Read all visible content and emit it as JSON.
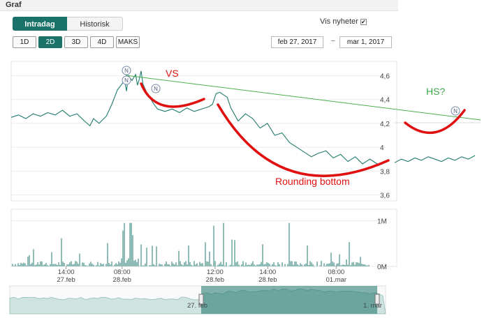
{
  "header": {
    "title": "Graf"
  },
  "tabs": [
    {
      "label": "Intradag",
      "active": true
    },
    {
      "label": "Historisk",
      "active": false
    }
  ],
  "news_toggle": {
    "label": "Vis nyheter",
    "checked": true,
    "mark": "✔"
  },
  "ranges": [
    {
      "label": "1D",
      "active": false
    },
    {
      "label": "2D",
      "active": true
    },
    {
      "label": "3D",
      "active": false
    },
    {
      "label": "4D",
      "active": false
    },
    {
      "label": "MAKS",
      "active": false
    }
  ],
  "date_range": {
    "from": "feb 27, 2017",
    "separator": "–",
    "to": "mar 1, 2017"
  },
  "colors": {
    "accent": "#1a7268",
    "price": "#1f7a6c",
    "annotation": "#e01010",
    "trend": "#4caf4c"
  },
  "chart_data": {
    "type": "line",
    "price_axis": {
      "ylim": [
        3.55,
        4.72
      ],
      "ticks": [
        "4,6",
        "4,4",
        "4,2",
        "4",
        "3,8",
        "3,6"
      ],
      "tick_values": [
        4.6,
        4.4,
        4.2,
        4.0,
        3.8,
        3.6
      ]
    },
    "volume_axis": {
      "ylim": [
        0,
        1.25
      ],
      "ticks": [
        "1M",
        "0M"
      ],
      "tick_values": [
        1,
        0
      ]
    },
    "x_ticks": [
      {
        "time": "14:00",
        "date": "27.feb",
        "t": 0.15
      },
      {
        "time": "08:00",
        "date": "28.feb",
        "t": 0.303
      },
      {
        "time": "12:00",
        "date": "28.feb",
        "t": 0.557
      },
      {
        "time": "14:00",
        "date": "28.feb",
        "t": 0.701
      },
      {
        "time": "08:00",
        "date": "01.mar",
        "t": 0.888
      }
    ],
    "series": [
      {
        "type": "line",
        "x": [
          0,
          0.02,
          0.04,
          0.06,
          0.08,
          0.1,
          0.12,
          0.14,
          0.16,
          0.18,
          0.2,
          0.215,
          0.225,
          0.24,
          0.26,
          0.275,
          0.29,
          0.3,
          0.31,
          0.315,
          0.32,
          0.33,
          0.34,
          0.345,
          0.35,
          0.355,
          0.36,
          0.37,
          0.38,
          0.39,
          0.4,
          0.42,
          0.44,
          0.46,
          0.48,
          0.5,
          0.52,
          0.54,
          0.55,
          0.56,
          0.57,
          0.58,
          0.59,
          0.6,
          0.62,
          0.64,
          0.66,
          0.68,
          0.7,
          0.72,
          0.74,
          0.76,
          0.78,
          0.8,
          0.82,
          0.84,
          0.86,
          0.88,
          0.9,
          0.92,
          0.94,
          0.96,
          0.98,
          1.0
        ],
        "y": [
          4.25,
          4.27,
          4.24,
          4.28,
          4.26,
          4.29,
          4.27,
          4.31,
          4.26,
          4.28,
          4.22,
          4.18,
          4.24,
          4.2,
          4.26,
          4.36,
          4.48,
          4.52,
          4.56,
          4.47,
          4.6,
          4.56,
          4.61,
          4.52,
          4.57,
          4.64,
          4.53,
          4.46,
          4.41,
          4.36,
          4.32,
          4.3,
          4.32,
          4.29,
          4.33,
          4.3,
          4.32,
          4.34,
          4.36,
          4.45,
          4.46,
          4.44,
          4.42,
          4.33,
          4.22,
          4.28,
          4.24,
          4.16,
          4.2,
          4.1,
          4.12,
          4.04,
          4.0,
          3.96,
          3.92,
          3.95,
          3.97,
          3.91,
          3.94,
          3.88,
          3.92,
          3.86,
          3.9,
          3.86
        ],
        "name": ""
      },
      {
        "type": "line",
        "x": [
          1.02,
          1.04,
          1.06,
          1.08,
          1.1,
          1.12,
          1.14,
          1.16,
          1.18,
          1.2,
          1.22,
          1.24,
          1.26
        ],
        "y": [
          3.87,
          3.9,
          3.88,
          3.91,
          3.89,
          3.92,
          3.9,
          3.88,
          3.91,
          3.89,
          3.92,
          3.9,
          3.93
        ],
        "name": ""
      }
    ],
    "annotations": [
      {
        "text": "VS",
        "color": "#e01010"
      },
      {
        "text": "Rounding bottom",
        "color": "#e01010"
      },
      {
        "text": "HS?",
        "color": "#3aa84a"
      }
    ],
    "news_markers": [
      "N",
      "N",
      "N",
      "N"
    ],
    "navigator": {
      "labels": [
        "27. feb",
        "1. mar"
      ]
    }
  }
}
